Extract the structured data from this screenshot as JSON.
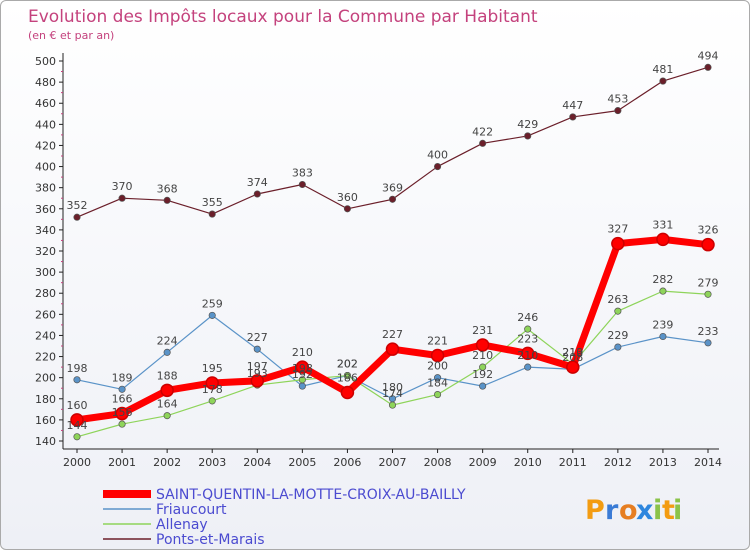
{
  "chart_data": {
    "type": "line",
    "title": "Evolution des Impôts locaux pour la Commune par Habitant",
    "subtitle": "(en € et par an)",
    "x": [
      "2000",
      "2001",
      "2002",
      "2003",
      "2004",
      "2005",
      "2006",
      "2007",
      "2008",
      "2009",
      "2010",
      "2011",
      "2012",
      "2013",
      "2014"
    ],
    "ylim": [
      140,
      500
    ],
    "yticks": [
      "140",
      "160",
      "180",
      "200",
      "220",
      "240",
      "260",
      "280",
      "300",
      "320",
      "340",
      "360",
      "380",
      "400",
      "420",
      "440",
      "460",
      "480",
      "500"
    ],
    "series": [
      {
        "name": "Ponts-et-Marais",
        "color": "#6b1f2a",
        "values": [
          352,
          370,
          368,
          355,
          374,
          383,
          360,
          369,
          400,
          422,
          429,
          447,
          453,
          481,
          494
        ],
        "labels": [
          "352",
          "370",
          "368",
          "355",
          "374",
          "383",
          "360",
          "369",
          "400",
          "422",
          "429",
          "447",
          "453",
          "481",
          "494"
        ]
      },
      {
        "name": "Friaucourt",
        "color": "#5a93c8",
        "values": [
          198,
          189,
          224,
          259,
          227,
          192,
          202,
          180,
          200,
          192,
          210,
          208,
          229,
          239,
          233
        ],
        "labels": [
          "198",
          "189",
          "224",
          "259",
          "227",
          "192",
          "202",
          "180",
          "200",
          "192",
          "210",
          "208",
          "229",
          "239",
          "233"
        ]
      },
      {
        "name": "Allenay",
        "color": "#8ed45a",
        "values": [
          144,
          156,
          164,
          178,
          193,
          198,
          202,
          174,
          184,
          210,
          246,
          213,
          263,
          282,
          279
        ],
        "labels": [
          "144",
          "156",
          "164",
          "178",
          "193",
          "198",
          "202",
          "174",
          "184",
          "210",
          "246",
          "213",
          "263",
          "282",
          "279"
        ]
      },
      {
        "name": "SAINT-QUENTIN-LA-MOTTE-CROIX-AU-BAILLY",
        "color": "#ff0000",
        "values": [
          160,
          166,
          188,
          195,
          197,
          210,
          186,
          227,
          221,
          231,
          223,
          210,
          327,
          331,
          326
        ],
        "labels": [
          "160",
          "166",
          "188",
          "195",
          "197",
          "210",
          "186",
          "227",
          "221",
          "231",
          "223",
          "210",
          "327",
          "331",
          "326"
        ]
      }
    ],
    "legend": [
      "SAINT-QUENTIN-LA-MOTTE-CROIX-AU-BAILLY",
      "Friaucourt",
      "Allenay",
      "Ponts-et-Marais"
    ],
    "legend_position": "bottom-left",
    "grid": false
  },
  "brand": {
    "letters": [
      "P",
      "r",
      "o",
      "x",
      "i",
      "t",
      "i"
    ],
    "colors": [
      "#f39c12",
      "#3a7bd5",
      "#e67e22",
      "#2e86de",
      "#8bc34a",
      "#f39c12",
      "#8bc34a"
    ]
  }
}
